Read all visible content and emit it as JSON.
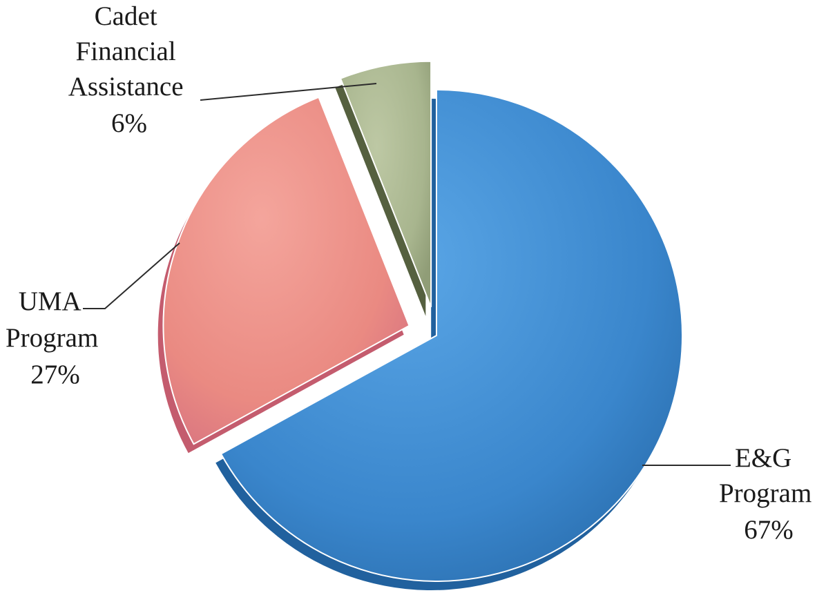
{
  "chart_data": {
    "type": "pie",
    "title": "",
    "slices": [
      {
        "name_lines": [
          "E&G",
          "Program"
        ],
        "value": 67,
        "value_label": "67%",
        "color": "#3a86cc",
        "side_color": "#21619e",
        "exploded": false
      },
      {
        "name_lines": [
          "UMA",
          "Program"
        ],
        "value": 27,
        "value_label": "27%",
        "color": "#ea8a82",
        "side_color": "#c45c6e",
        "exploded": true
      },
      {
        "name_lines": [
          "Cadet",
          "Financial",
          "Assistance"
        ],
        "value": 6,
        "value_label": "6%",
        "color": "#a8b58e",
        "side_color": "#55603f",
        "exploded": true
      }
    ],
    "legend": "none",
    "labels": "outside with leader lines"
  }
}
